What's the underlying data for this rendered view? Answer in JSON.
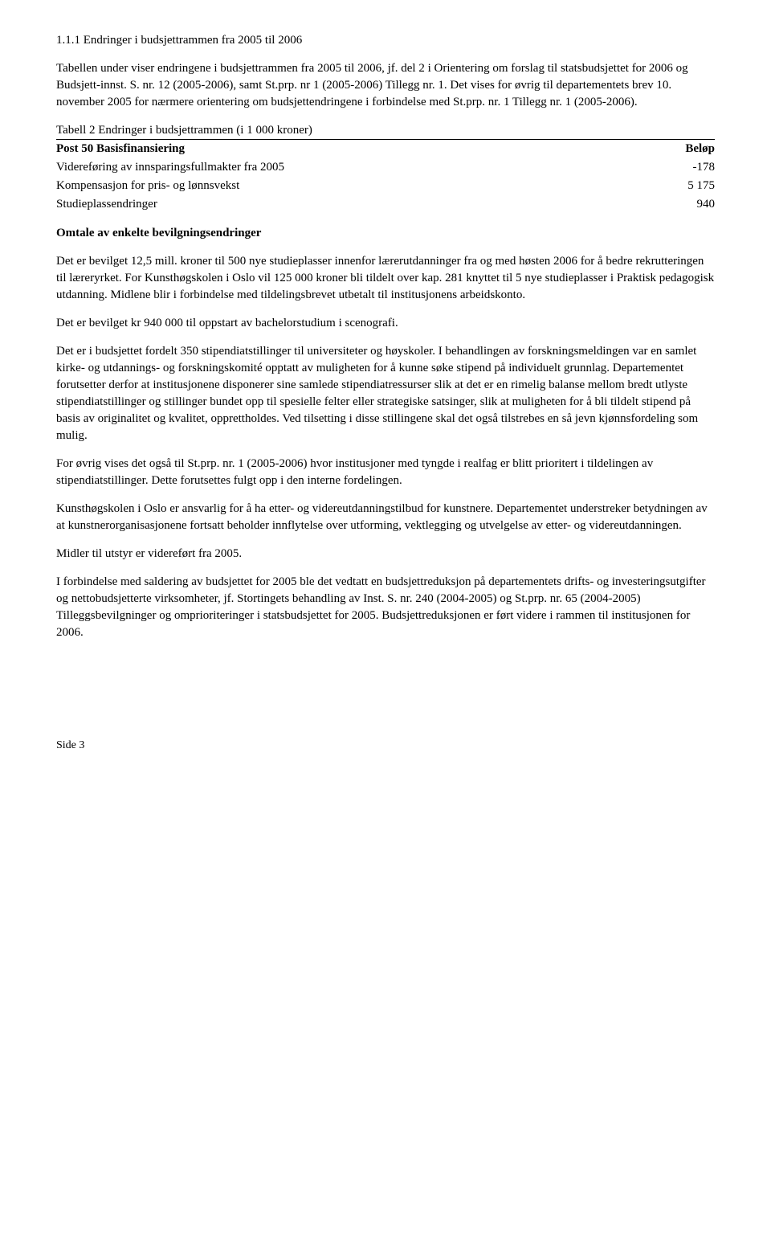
{
  "section_number": "1.1.1",
  "section_title": "Endringer i budsjettrammen fra 2005 til 2006",
  "intro_para": "Tabellen under viser endringene i budsjettrammen fra 2005 til 2006, jf. del 2 i Orientering om forslag til statsbudsjettet for 2006 og Budsjett-innst. S. nr. 12 (2005-2006), samt St.prp. nr 1 (2005-2006) Tillegg nr. 1. Det vises for øvrig til departementets brev 10. november 2005 for nærmere orientering om budsjettendringene i forbindelse med St.prp. nr. 1 Tillegg nr. 1 (2005-2006).",
  "table_caption": "Tabell 2 Endringer i budsjettrammen (i 1 000 kroner)",
  "table": {
    "header_label": "Post 50 Basisfinansiering",
    "header_value": "Beløp",
    "rows": [
      {
        "label": "Videreføring av innsparingsfullmakter fra 2005",
        "value": "-178"
      },
      {
        "label": "Kompensasjon for pris- og lønnsvekst",
        "value": "5 175"
      },
      {
        "label": "Studieplassendringer",
        "value": "940"
      }
    ]
  },
  "subheading": "Omtale av enkelte bevilgningsendringer",
  "paragraphs": [
    "Det er bevilget 12,5 mill. kroner til 500 nye studieplasser innenfor lærerutdanninger fra og med høsten 2006 for å bedre rekrutteringen til læreryrket. For Kunsthøgskolen i Oslo vil 125 000 kroner bli tildelt over kap. 281 knyttet til 5 nye studieplasser i Praktisk pedagogisk utdanning. Midlene blir i forbindelse med tildelingsbrevet utbetalt til institusjonens arbeidskonto.",
    "Det er bevilget kr 940 000 til oppstart av bachelorstudium i scenografi.",
    "Det er i budsjettet fordelt 350 stipendiatstillinger til universiteter og høyskoler. I behandlingen av forskningsmeldingen var en samlet kirke- og utdannings- og forskningskomité opptatt av muligheten for å kunne søke stipend på individuelt grunnlag. Departementet forutsetter derfor at institusjonene disponerer sine samlede stipendiatressurser slik at det er en rimelig balanse mellom bredt utlyste stipendiatstillinger og stillinger bundet opp til spesielle felter eller strategiske satsinger, slik at muligheten for å bli tildelt stipend på basis av originalitet og kvalitet, opprettholdes. Ved tilsetting i disse stillingene skal det også tilstrebes en så jevn kjønnsfordeling som mulig.",
    "For øvrig vises det også til St.prp. nr. 1 (2005-2006) hvor institusjoner med tyngde i realfag er blitt prioritert i tildelingen av stipendiatstillinger. Dette forutsettes fulgt opp i den interne fordelingen.",
    "Kunsthøgskolen i Oslo er ansvarlig for å ha etter- og videreutdanningstilbud for kunstnere. Departementet understreker betydningen av at kunstnerorganisasjonene fortsatt beholder innflytelse over utforming, vektlegging og utvelgelse av etter- og videreutdanningen.",
    "Midler til utstyr er videreført fra 2005.",
    "I forbindelse med saldering av budsjettet for 2005 ble det vedtatt en budsjettreduksjon på departementets drifts- og investeringsutgifter og nettobudsjetterte virksomheter, jf. Stortingets behandling av Inst. S. nr. 240 (2004-2005) og St.prp. nr. 65 (2004-2005) Tilleggsbevilgninger og omprioriteringer i statsbudsjettet for 2005. Budsjettreduksjonen er ført videre i rammen til institusjonen for 2006."
  ],
  "footer": "Side 3"
}
